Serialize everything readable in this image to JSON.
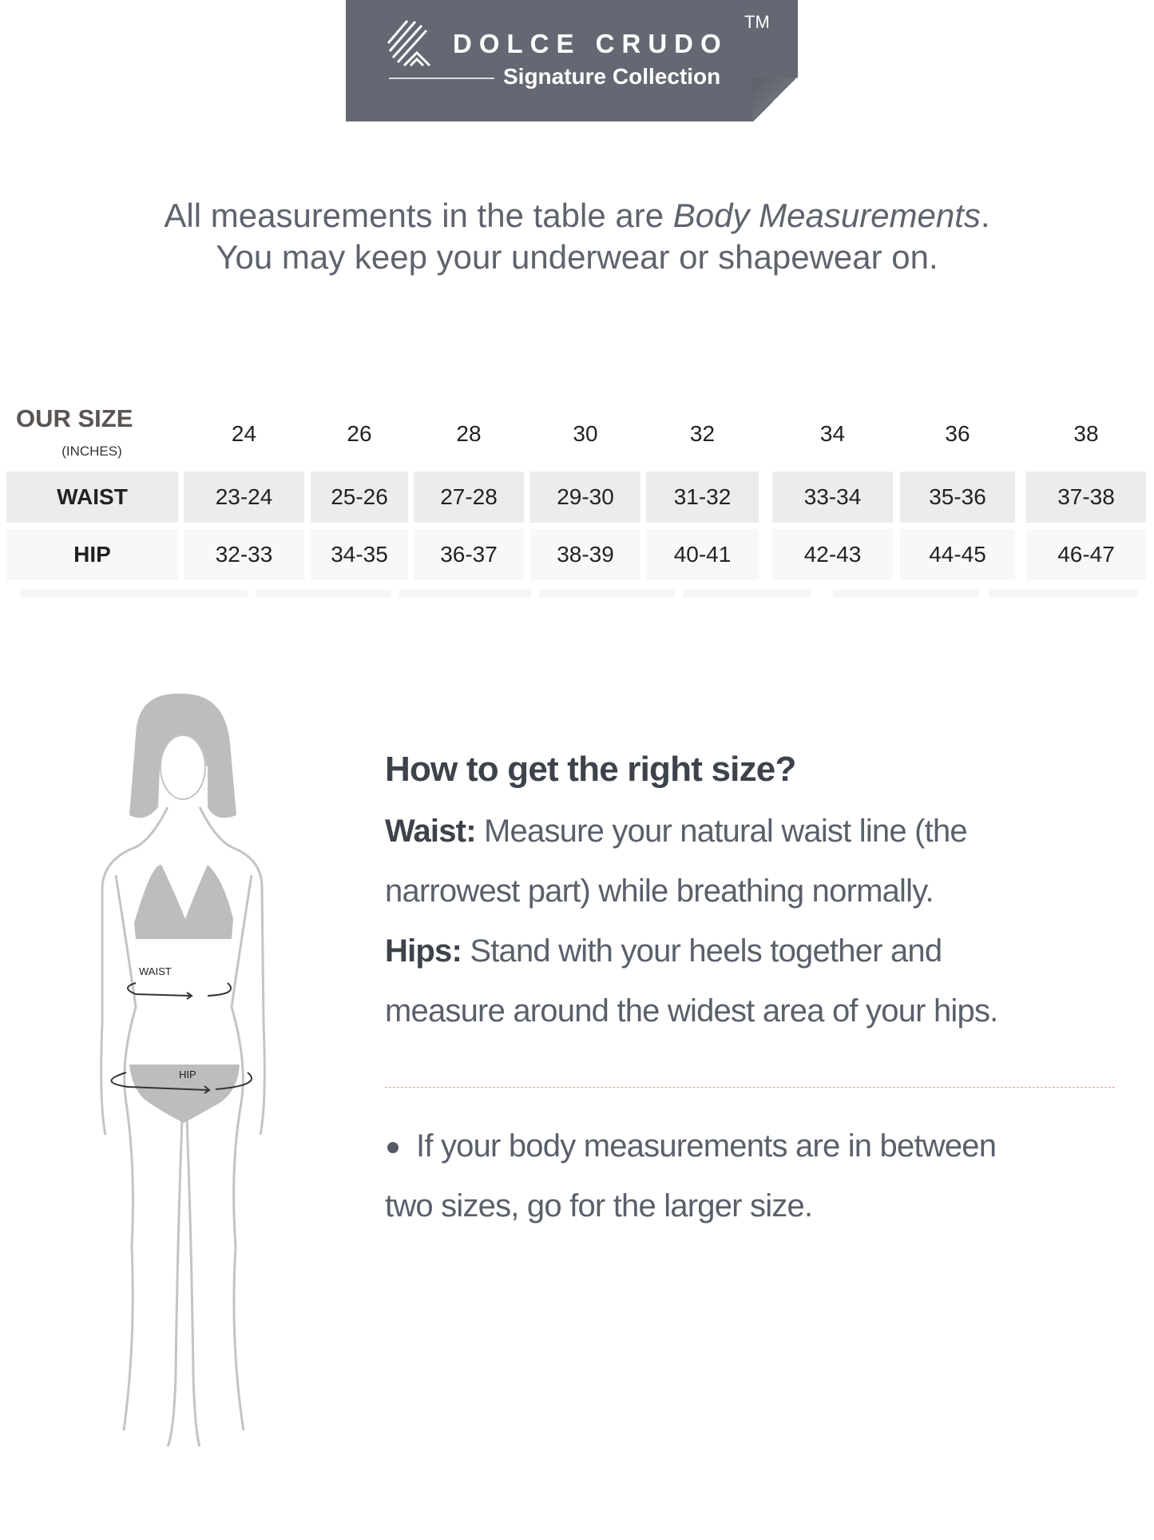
{
  "brand": {
    "name": "DOLCE CRUDO",
    "trademark": "TM",
    "subtitle": "Signature Collection",
    "banner_color": "#636872"
  },
  "intro": {
    "line1_prefix": "All measurements in the table are ",
    "line1_emphasis": "Body Measurements",
    "line1_suffix": ".",
    "line2": "You may keep your underwear or shapewear on."
  },
  "size_table": {
    "header_label": "OUR SIZE",
    "header_unit": "(INCHES)",
    "sizes": [
      "24",
      "26",
      "28",
      "30",
      "32",
      "34",
      "36",
      "38"
    ],
    "rows": [
      {
        "label": "WAIST",
        "values": [
          "23-24",
          "25-26",
          "27-28",
          "29-30",
          "31-32",
          "33-34",
          "35-36",
          "37-38"
        ]
      },
      {
        "label": "HIP",
        "values": [
          "32-33",
          "34-35",
          "36-37",
          "38-39",
          "40-41",
          "42-43",
          "44-45",
          "46-47"
        ]
      }
    ]
  },
  "figure": {
    "waist_label": "WAIST",
    "hip_label": "HIP"
  },
  "guide": {
    "title": "How to get the right size?",
    "waist_label": "Waist:",
    "waist_text_1": " Measure your natural waist line (the",
    "waist_text_2": "narrowest part) while breathing normally.",
    "hips_label": "Hips:",
    "hips_text_1": " Stand with your heels together and",
    "hips_text_2": "measure around the widest area of your hips.",
    "note_1": "If your body measurements are in between",
    "note_2": "two sizes, go for the larger size."
  }
}
